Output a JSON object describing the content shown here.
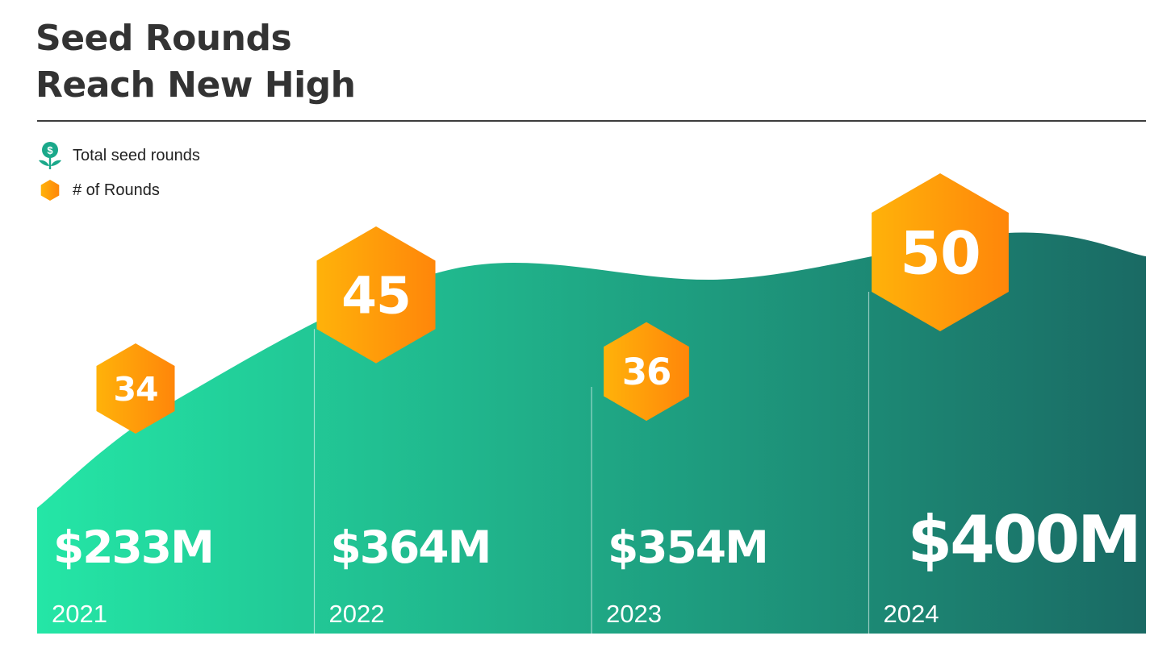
{
  "header": {
    "title_line_1": "Seed Rounds",
    "title_line_2": "Reach New High"
  },
  "legend": [
    {
      "label": "Total seed rounds",
      "icon": "money-plant-icon",
      "color": "#1aa88a"
    },
    {
      "label": "# of Rounds",
      "icon": "hexagon-icon",
      "color": "#ff9a0a"
    }
  ],
  "colors": {
    "area_start": "#24e6a6",
    "area_end": "#1a6a64",
    "hexagon_start": "#ffb20a",
    "hexagon_end": "#ff860a",
    "text_on_area": "#ffffff",
    "text_on_hexagon": "#ffffff"
  },
  "chart_data": {
    "type": "area",
    "categories": [
      "2021",
      "2022",
      "2023",
      "2024"
    ],
    "series": [
      {
        "name": "Total seed rounds",
        "values": [
          233,
          364,
          354,
          400
        ],
        "labels": [
          "$233M",
          "$364M",
          "$354M",
          "$400M"
        ]
      },
      {
        "name": "# of Rounds",
        "values": [
          34,
          45,
          36,
          50
        ],
        "labels": [
          "34",
          "45",
          "36",
          "50"
        ]
      }
    ]
  }
}
